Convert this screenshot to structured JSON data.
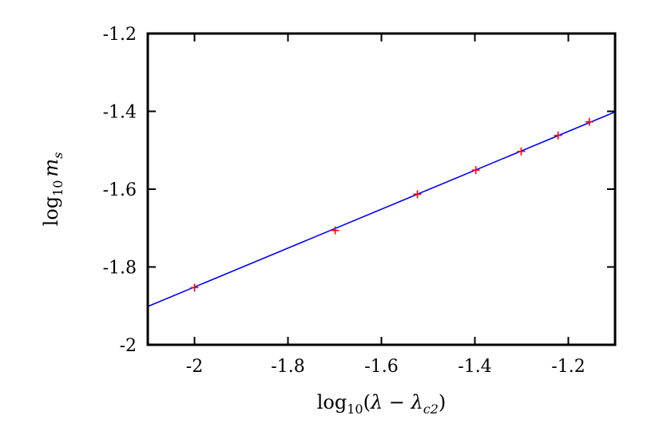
{
  "chart_data": {
    "type": "scatter",
    "xlabel": "log10(λ − λc2)",
    "ylabel": "log10 ms",
    "xlabel_parts": {
      "base": "log",
      "sub": "10",
      "open": "(",
      "lambda": "λ",
      "minus": " − ",
      "lambda2": "λ",
      "sub2": "c2",
      "close": ")"
    },
    "ylabel_parts": {
      "base": "log",
      "sub": "10",
      "var": "m",
      "varsub": "s"
    },
    "xlim": [
      -2.1,
      -1.1
    ],
    "ylim": [
      -2.0,
      -1.2
    ],
    "x_ticks": [
      -2.0,
      -1.8,
      -1.6,
      -1.4,
      -1.2
    ],
    "y_ticks": [
      -2.0,
      -1.8,
      -1.6,
      -1.4,
      -1.2
    ],
    "x_tick_labels": [
      "-2",
      "-1.8",
      "-1.6",
      "-1.4",
      "-1.2"
    ],
    "y_tick_labels": [
      "-2",
      "-1.8",
      "-1.6",
      "-1.4",
      "-1.2"
    ],
    "grid": false,
    "series": [
      {
        "marker": "+",
        "color": "#ff0000",
        "x": [
          -2.0,
          -1.699,
          -1.523,
          -1.398,
          -1.301,
          -1.222,
          -1.155
        ],
        "y": [
          -1.853,
          -1.706,
          -1.613,
          -1.551,
          -1.503,
          -1.462,
          -1.427
        ]
      },
      {
        "type": "line",
        "color": "#0000ff",
        "x": [
          -2.1,
          -1.1
        ],
        "y": [
          -1.9015,
          -1.4015
        ]
      }
    ]
  }
}
